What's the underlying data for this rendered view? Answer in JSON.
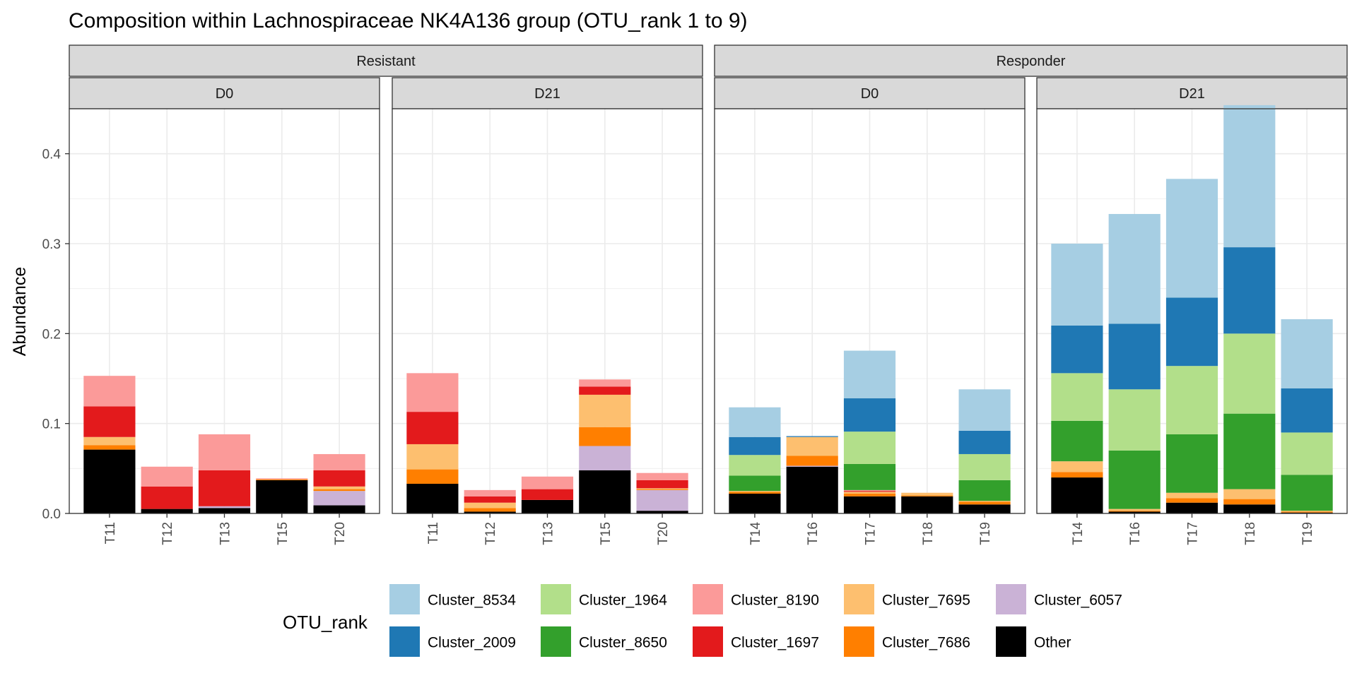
{
  "chart_data": {
    "type": "bar",
    "stacked": true,
    "title": "Composition within Lachnospiraceae NK4A136 group (OTU_rank 1 to 9)",
    "xlabel": "",
    "ylabel": "Abundance",
    "ylim": [
      0,
      0.45
    ],
    "yticks": [
      0.0,
      0.1,
      0.2,
      0.3,
      0.4
    ],
    "ytick_labels": [
      "0.0",
      "0.1",
      "0.2",
      "0.3",
      "0.4"
    ],
    "grid": true,
    "legend_title": "OTU_rank",
    "legend_position": "bottom",
    "stack_order": [
      "Other",
      "Cluster_6057",
      "Cluster_7686",
      "Cluster_7695",
      "Cluster_1697",
      "Cluster_8190",
      "Cluster_8650",
      "Cluster_1964",
      "Cluster_2009",
      "Cluster_8534"
    ],
    "legend": [
      {
        "name": "Cluster_8534",
        "color": "#a6cee3"
      },
      {
        "name": "Cluster_2009",
        "color": "#1f78b4"
      },
      {
        "name": "Cluster_1964",
        "color": "#b2df8a"
      },
      {
        "name": "Cluster_8650",
        "color": "#33a02c"
      },
      {
        "name": "Cluster_8190",
        "color": "#fb9a99"
      },
      {
        "name": "Cluster_1697",
        "color": "#e31a1c"
      },
      {
        "name": "Cluster_7695",
        "color": "#fdbf6f"
      },
      {
        "name": "Cluster_7686",
        "color": "#ff7f00"
      },
      {
        "name": "Cluster_6057",
        "color": "#cab2d6"
      },
      {
        "name": "Other",
        "color": "#000000"
      }
    ],
    "groups": [
      {
        "label": "Resistant",
        "panels": [
          0,
          1
        ]
      },
      {
        "label": "Responder",
        "panels": [
          2,
          3
        ]
      }
    ],
    "panels": [
      {
        "label": "D0",
        "categories": [
          "T11",
          "T12",
          "T13",
          "T15",
          "T20"
        ],
        "bars": [
          {
            "Other": 0.071,
            "Cluster_7686": 0.005,
            "Cluster_7695": 0.009,
            "Cluster_1697": 0.034,
            "Cluster_8190": 0.034
          },
          {
            "Other": 0.005,
            "Cluster_1697": 0.025,
            "Cluster_8190": 0.022
          },
          {
            "Other": 0.006,
            "Cluster_6057": 0.002,
            "Cluster_1697": 0.04,
            "Cluster_8190": 0.04
          },
          {
            "Other": 0.037,
            "Cluster_7686": 0.001,
            "Cluster_8190": 0.001
          },
          {
            "Other": 0.009,
            "Cluster_6057": 0.016,
            "Cluster_7686": 0.002,
            "Cluster_7695": 0.003,
            "Cluster_1697": 0.018,
            "Cluster_8190": 0.018
          }
        ]
      },
      {
        "label": "D21",
        "categories": [
          "T11",
          "T12",
          "T13",
          "T15",
          "T20"
        ],
        "bars": [
          {
            "Other": 0.033,
            "Cluster_7686": 0.016,
            "Cluster_7695": 0.028,
            "Cluster_1697": 0.036,
            "Cluster_8190": 0.043
          },
          {
            "Other": 0.002,
            "Cluster_7686": 0.004,
            "Cluster_7695": 0.006,
            "Cluster_1697": 0.007,
            "Cluster_8190": 0.007
          },
          {
            "Other": 0.015,
            "Cluster_1697": 0.012,
            "Cluster_8190": 0.014
          },
          {
            "Other": 0.048,
            "Cluster_6057": 0.027,
            "Cluster_7686": 0.021,
            "Cluster_7695": 0.036,
            "Cluster_1697": 0.009,
            "Cluster_8190": 0.008
          },
          {
            "Other": 0.003,
            "Cluster_6057": 0.023,
            "Cluster_7686": 0.001,
            "Cluster_7695": 0.001,
            "Cluster_1697": 0.009,
            "Cluster_8190": 0.008
          }
        ]
      },
      {
        "label": "D0",
        "categories": [
          "T14",
          "T16",
          "T17",
          "T18",
          "T19"
        ],
        "bars": [
          {
            "Other": 0.022,
            "Cluster_7686": 0.002,
            "Cluster_7695": 0.001,
            "Cluster_8650": 0.017,
            "Cluster_1964": 0.023,
            "Cluster_2009": 0.02,
            "Cluster_8534": 0.033
          },
          {
            "Other": 0.052,
            "Cluster_6057": 0.001,
            "Cluster_7686": 0.011,
            "Cluster_7695": 0.021,
            "Cluster_2009": 0.001
          },
          {
            "Other": 0.019,
            "Cluster_7686": 0.003,
            "Cluster_7695": 0.002,
            "Cluster_1697": 0.001,
            "Cluster_8190": 0.001,
            "Cluster_8650": 0.029,
            "Cluster_1964": 0.036,
            "Cluster_2009": 0.037,
            "Cluster_8534": 0.053
          },
          {
            "Other": 0.019,
            "Cluster_7686": 0.001,
            "Cluster_7695": 0.003
          },
          {
            "Other": 0.01,
            "Cluster_7686": 0.003,
            "Cluster_7695": 0.001,
            "Cluster_8650": 0.023,
            "Cluster_1964": 0.029,
            "Cluster_2009": 0.026,
            "Cluster_8534": 0.046
          }
        ]
      },
      {
        "label": "D21",
        "categories": [
          "T14",
          "T16",
          "T17",
          "T18",
          "T19"
        ],
        "bars": [
          {
            "Other": 0.04,
            "Cluster_7686": 0.006,
            "Cluster_7695": 0.012,
            "Cluster_8650": 0.045,
            "Cluster_1964": 0.053,
            "Cluster_2009": 0.053,
            "Cluster_8534": 0.091
          },
          {
            "Other": 0.002,
            "Cluster_7686": 0.001,
            "Cluster_7695": 0.002,
            "Cluster_8650": 0.065,
            "Cluster_1964": 0.068,
            "Cluster_2009": 0.073,
            "Cluster_8534": 0.122
          },
          {
            "Other": 0.012,
            "Cluster_7686": 0.005,
            "Cluster_7695": 0.006,
            "Cluster_8650": 0.065,
            "Cluster_1964": 0.076,
            "Cluster_2009": 0.076,
            "Cluster_8534": 0.132
          },
          {
            "Other": 0.01,
            "Cluster_7686": 0.006,
            "Cluster_7695": 0.011,
            "Cluster_8650": 0.084,
            "Cluster_1964": 0.089,
            "Cluster_2009": 0.096,
            "Cluster_8534": 0.158
          },
          {
            "Other": 0.001,
            "Cluster_7686": 0.001,
            "Cluster_7695": 0.001,
            "Cluster_8650": 0.04,
            "Cluster_1964": 0.047,
            "Cluster_2009": 0.049,
            "Cluster_8534": 0.077
          }
        ]
      }
    ]
  }
}
